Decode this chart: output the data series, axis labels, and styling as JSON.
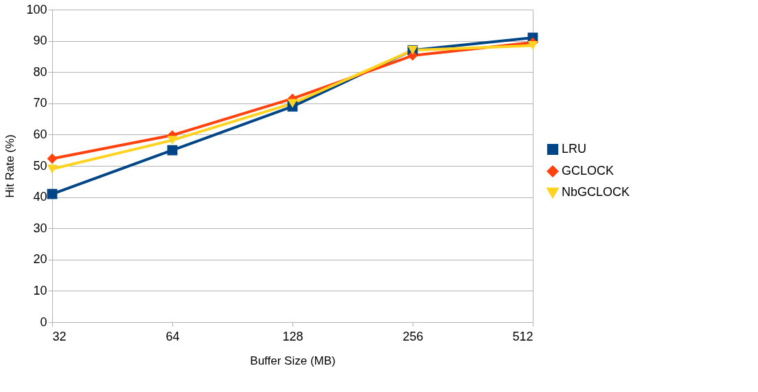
{
  "chart_data": {
    "type": "line",
    "xlabel": "Buffer Size (MB)",
    "ylabel": "Hit Rate (%)",
    "categories": [
      "32",
      "64",
      "128",
      "256",
      "512"
    ],
    "series": [
      {
        "name": "LRU",
        "color": "#004586",
        "marker": "square",
        "values": [
          41,
          55,
          69,
          87,
          91
        ]
      },
      {
        "name": "GCLOCK",
        "color": "#ff420e",
        "marker": "diamond",
        "values": [
          52.3,
          59.8,
          71.5,
          85.3,
          89.5
        ]
      },
      {
        "name": "NbGCLOCK",
        "color": "#ffd320",
        "marker": "triangle-down",
        "values": [
          49,
          58.2,
          70,
          87,
          88.5
        ]
      }
    ],
    "ylim": [
      0,
      100
    ],
    "yticks": [
      0,
      10,
      20,
      30,
      40,
      50,
      60,
      70,
      80,
      90,
      100
    ],
    "grid": "y",
    "legend": "right",
    "line_style": "solid"
  }
}
